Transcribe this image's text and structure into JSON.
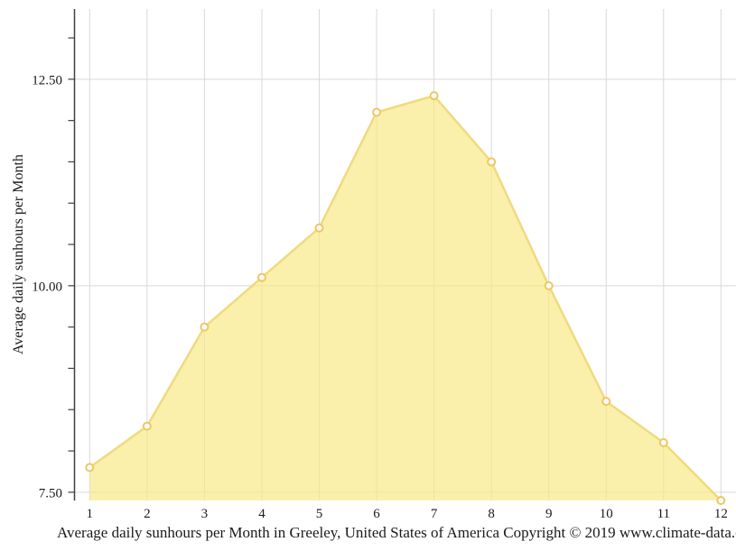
{
  "chart_data": {
    "type": "area",
    "title": "",
    "ylabel": "Average daily sunhours per Month",
    "caption": "Average daily sunhours per Month in Greeley, United States of America Copyright © 2019 www.climate-data.org",
    "categories": [
      "1",
      "2",
      "3",
      "4",
      "5",
      "6",
      "7",
      "8",
      "9",
      "10",
      "11",
      "12"
    ],
    "values": [
      7.8,
      8.3,
      9.5,
      10.1,
      10.7,
      12.1,
      12.3,
      11.5,
      10.0,
      8.6,
      8.1,
      7.4
    ],
    "series_name": "Average daily sunhours",
    "xlim": [
      1,
      12
    ],
    "ylim": [
      7.4,
      13.35
    ],
    "yticks_major": [
      {
        "value": 7.5,
        "label": "7.50"
      },
      {
        "value": 10.0,
        "label": "10.00"
      },
      {
        "value": 12.5,
        "label": "12.50"
      }
    ],
    "yticks_minor": [
      8.0,
      8.5,
      9.0,
      9.5,
      10.5,
      11.0,
      11.5,
      12.0,
      13.0
    ],
    "grid": true,
    "legend": false,
    "colors": {
      "area_fill": "#F7E881",
      "area_fill_opacity": "0.67",
      "line": "#F0DA7E",
      "marker_fill": "#FFFFFF",
      "marker_stroke": "#EEC762",
      "gridline": "#D9D9D9",
      "axis_line": "#404040",
      "tick_text": "#1A1A1A"
    }
  }
}
